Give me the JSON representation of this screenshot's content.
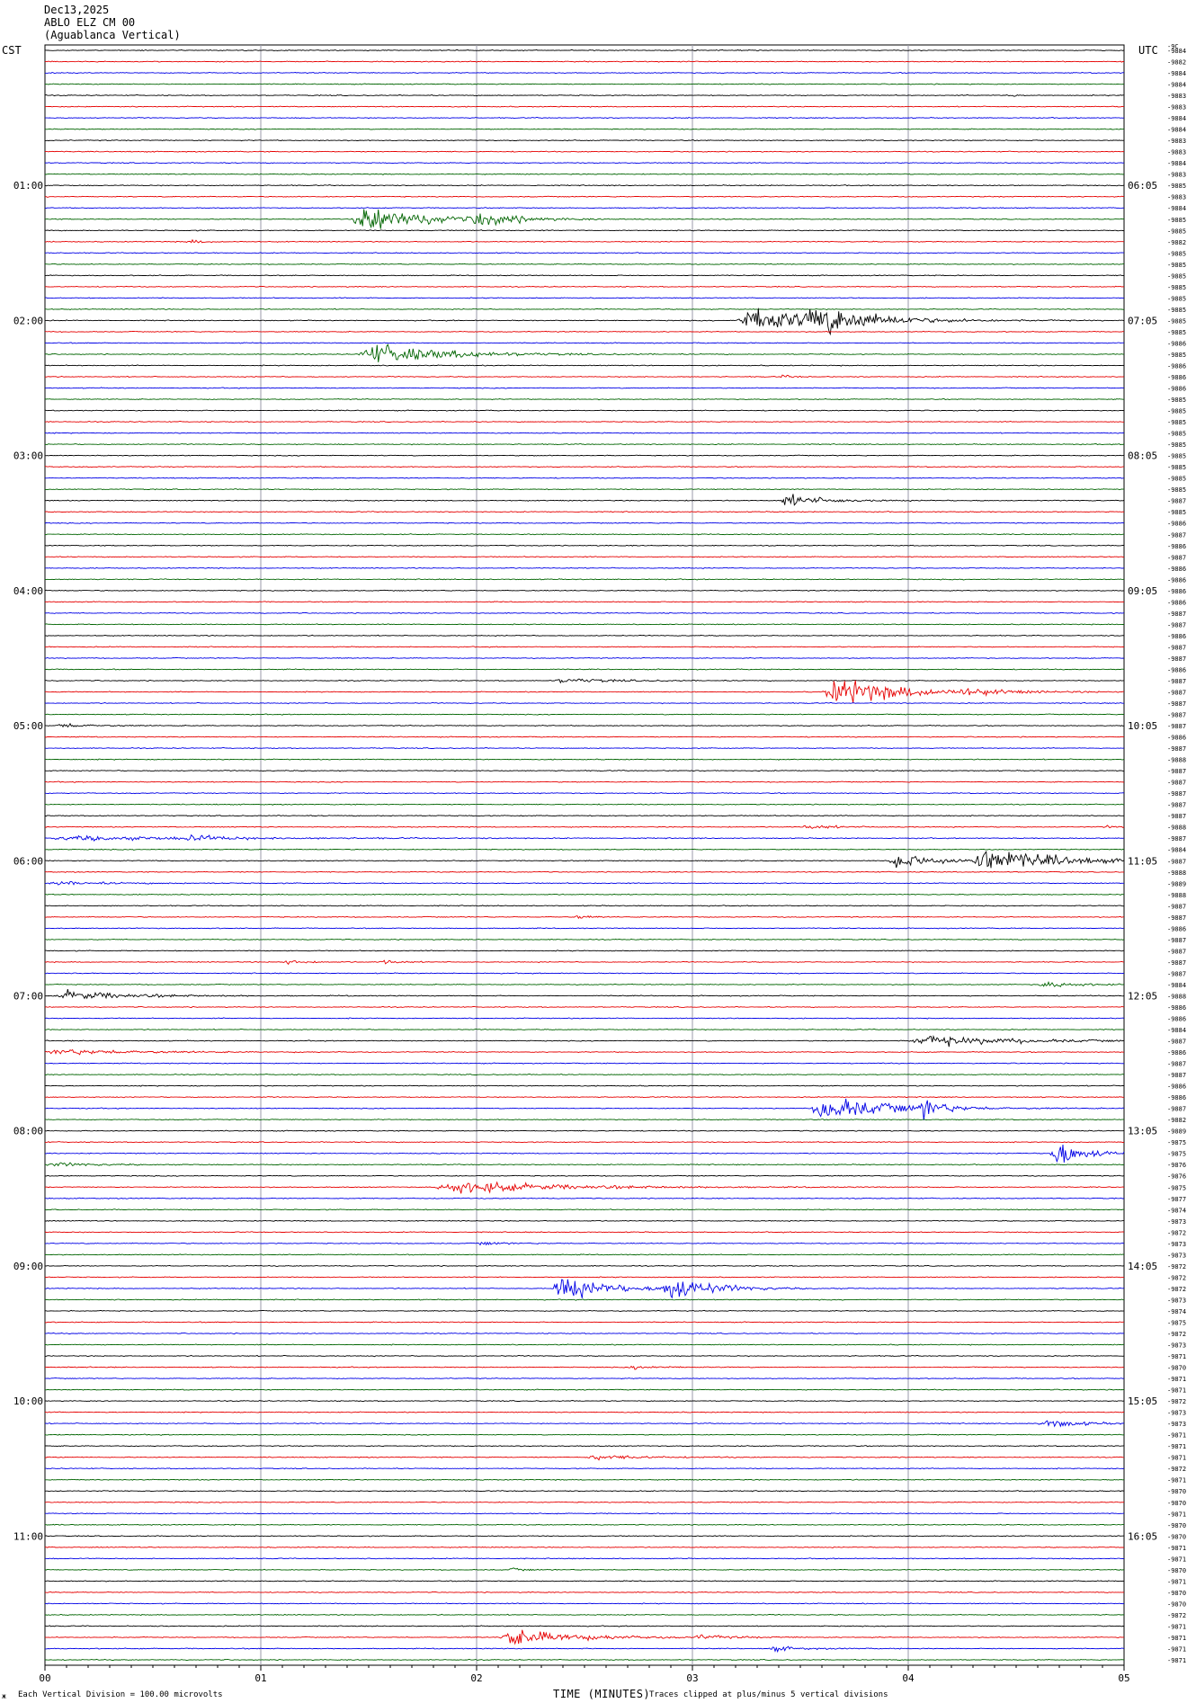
{
  "header": {
    "date": "Dec13,2025",
    "station": "ABLO ELZ CM 00",
    "location": "(Aguablanca Vertical)",
    "left_tz": "CST",
    "right_tz": "UTC"
  },
  "footer": {
    "corner_mark": "ж",
    "scale_note": "Each Vertical Division =  100.00 microvolts",
    "xlabel": "TIME (MINUTES)",
    "clip_note": "Traces clipped at plus/minus 5 vertical divisions"
  },
  "chart_data": {
    "type": "line",
    "title": "ABLO ELZ CM 00 (Aguablanca Vertical)",
    "date": "Dec13,2025",
    "xlabel": "TIME (MINUTES)",
    "x_ticks": [
      "00",
      "01",
      "02",
      "03",
      "04",
      "05"
    ],
    "xlim": [
      0,
      5
    ],
    "trace_count": 144,
    "trace_colors": [
      "#000000",
      "#e60000",
      "#0000e6",
      "#006400"
    ],
    "left_time_labels": [
      "01:00",
      "02:00",
      "03:00",
      "04:00",
      "05:00",
      "06:00",
      "07:00",
      "08:00",
      "09:00",
      "10:00",
      "11:00"
    ],
    "right_time_labels": [
      "06:05",
      "07:05",
      "08:05",
      "09:05",
      "10:05",
      "11:05",
      "12:05",
      "13:05",
      "14:05",
      "15:05",
      "16:05"
    ],
    "label_every_n_traces": 12,
    "label_first_trace": 12,
    "right_values_top": "-9C",
    "right_values": [
      "-9884",
      "-9882",
      "-9884",
      "-9884",
      "-9883",
      "-9883",
      "-9884",
      "-9884",
      "-9883",
      "-9883",
      "-9884",
      "-9883",
      "-9885",
      "-9883",
      "-9884",
      "-9885",
      "-9885",
      "-9882",
      "-9885",
      "-9885",
      "-9885",
      "-9885",
      "-9885",
      "-9885",
      "-9885",
      "-9885",
      "-9886",
      "-9885",
      "-9886",
      "-9886",
      "-9886",
      "-9885",
      "-9885",
      "-9885",
      "-9885",
      "-9885",
      "-9885",
      "-9885",
      "-9885",
      "-9885",
      "-9887",
      "-9885",
      "-9886",
      "-9887",
      "-9886",
      "-9887",
      "-9886",
      "-9886",
      "-9886",
      "-9886",
      "-9887",
      "-9887",
      "-9886",
      "-9887",
      "-9887",
      "-9886",
      "-9887",
      "-9887",
      "-9887",
      "-9887",
      "-9887",
      "-9886",
      "-9887",
      "-9888",
      "-9887",
      "-9887",
      "-9887",
      "-9887",
      "-9887",
      "-9888",
      "-9887",
      "-9884",
      "-9887",
      "-9888",
      "-9889",
      "-9888",
      "-9887",
      "-9887",
      "-9886",
      "-9887",
      "-9887",
      "-9887",
      "-9887",
      "-9884",
      "-9888",
      "-9886",
      "-9886",
      "-9884",
      "-9887",
      "-9886",
      "-9887",
      "-9887",
      "-9886",
      "-9886",
      "-9887",
      "-9882",
      "-9889",
      "-9875",
      "-9875",
      "-9876",
      "-9876",
      "-9875",
      "-9877",
      "-9874",
      "-9873",
      "-9872",
      "-9873",
      "-9873",
      "-9872",
      "-9872",
      "-9872",
      "-9873",
      "-9874",
      "-9875",
      "-9872",
      "-9873",
      "-9871",
      "-9870",
      "-9871",
      "-9871",
      "-9872",
      "-9873",
      "-9873",
      "-9871",
      "-9871",
      "-9871",
      "-9872",
      "-9871",
      "-9870",
      "-9870",
      "-9871",
      "-9870",
      "-9870",
      "-9871",
      "-9871",
      "-9870",
      "-9871",
      "-9870",
      "-9870",
      "-9872",
      "-9871",
      "-9871",
      "-9871",
      "-9871"
    ],
    "events": [
      {
        "trace": 4,
        "x": 4.45,
        "amp": 0.6,
        "dur": 0.12
      },
      {
        "trace": 15,
        "x": 1.42,
        "amp": 5,
        "dur": 0.7
      },
      {
        "trace": 15,
        "x": 1.98,
        "amp": 3,
        "dur": 0.35
      },
      {
        "trace": 17,
        "x": 0.65,
        "amp": 0.7,
        "dur": 0.2
      },
      {
        "trace": 24,
        "x": 3.2,
        "amp": 5,
        "dur": 0.9
      },
      {
        "trace": 24,
        "x": 3.52,
        "amp": 5,
        "dur": 0.5
      },
      {
        "trace": 27,
        "x": 1.45,
        "amp": 4,
        "dur": 0.8
      },
      {
        "trace": 29,
        "x": 3.4,
        "amp": 0.6,
        "dur": 0.15
      },
      {
        "trace": 40,
        "x": 3.4,
        "amp": 2.2,
        "dur": 0.45
      },
      {
        "trace": 56,
        "x": 2.35,
        "amp": 0.8,
        "dur": 0.6
      },
      {
        "trace": 57,
        "x": 3.6,
        "amp": 5,
        "dur": 0.8
      },
      {
        "trace": 57,
        "x": 4.22,
        "amp": 1.2,
        "dur": 0.3
      },
      {
        "trace": 60,
        "x": 0.05,
        "amp": 0.9,
        "dur": 0.3
      },
      {
        "trace": 69,
        "x": 3.5,
        "amp": 0.8,
        "dur": 0.35
      },
      {
        "trace": 69,
        "x": 4.9,
        "amp": 0.4,
        "dur": 0.2
      },
      {
        "trace": 70,
        "x": 0.0,
        "amp": 0.8,
        "dur": 1.7
      },
      {
        "trace": 70,
        "x": 0.65,
        "amp": 1.5,
        "dur": 0.25
      },
      {
        "trace": 72,
        "x": 3.9,
        "amp": 3,
        "dur": 0.5
      },
      {
        "trace": 72,
        "x": 4.28,
        "amp": 5,
        "dur": 0.75
      },
      {
        "trace": 74,
        "x": 0.0,
        "amp": 0.6,
        "dur": 0.7
      },
      {
        "trace": 77,
        "x": 2.45,
        "amp": 0.7,
        "dur": 0.15
      },
      {
        "trace": 81,
        "x": 1.1,
        "amp": 0.8,
        "dur": 0.25
      },
      {
        "trace": 81,
        "x": 1.55,
        "amp": 1.2,
        "dur": 0.15
      },
      {
        "trace": 83,
        "x": 4.6,
        "amp": 1.0,
        "dur": 0.4
      },
      {
        "trace": 84,
        "x": 0.05,
        "amp": 1.8,
        "dur": 0.7
      },
      {
        "trace": 88,
        "x": 4.0,
        "amp": 2.0,
        "dur": 1.0
      },
      {
        "trace": 89,
        "x": 0.0,
        "amp": 1.0,
        "dur": 0.9
      },
      {
        "trace": 94,
        "x": 3.55,
        "amp": 5,
        "dur": 0.7
      },
      {
        "trace": 94,
        "x": 4.05,
        "amp": 3.5,
        "dur": 0.2
      },
      {
        "trace": 98,
        "x": 4.65,
        "amp": 5,
        "dur": 0.35
      },
      {
        "trace": 99,
        "x": 0.0,
        "amp": 0.7,
        "dur": 0.5
      },
      {
        "trace": 101,
        "x": 1.8,
        "amp": 2.2,
        "dur": 1.2
      },
      {
        "trace": 106,
        "x": 2.0,
        "amp": 0.6,
        "dur": 0.3
      },
      {
        "trace": 110,
        "x": 2.35,
        "amp": 5,
        "dur": 0.5
      },
      {
        "trace": 110,
        "x": 2.85,
        "amp": 5,
        "dur": 0.45
      },
      {
        "trace": 117,
        "x": 2.7,
        "amp": 0.6,
        "dur": 0.35
      },
      {
        "trace": 122,
        "x": 4.6,
        "amp": 1.6,
        "dur": 0.4
      },
      {
        "trace": 125,
        "x": 2.5,
        "amp": 0.9,
        "dur": 0.55
      },
      {
        "trace": 135,
        "x": 2.15,
        "amp": 0.6,
        "dur": 0.15
      },
      {
        "trace": 141,
        "x": 2.1,
        "amp": 3.2,
        "dur": 0.7
      },
      {
        "trace": 141,
        "x": 3.0,
        "amp": 0.8,
        "dur": 0.35
      },
      {
        "trace": 142,
        "x": 3.35,
        "amp": 1.0,
        "dur": 0.3
      }
    ]
  }
}
